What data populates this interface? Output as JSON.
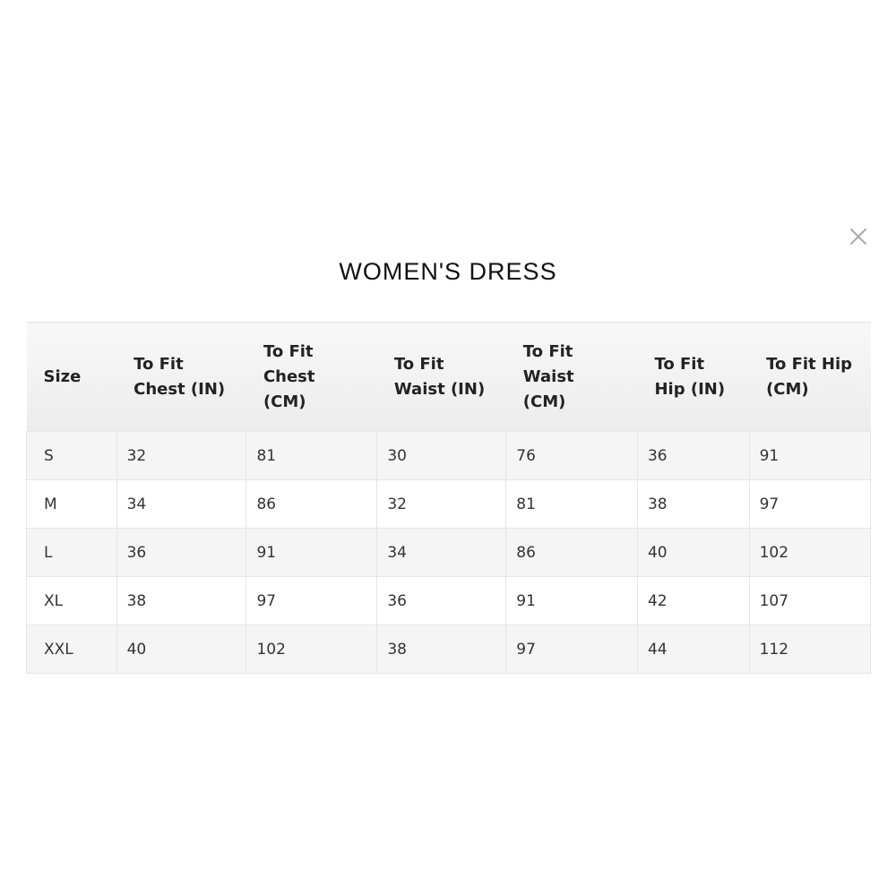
{
  "modal": {
    "title": "WOMEN'S DRESS",
    "close_icon": "close-icon"
  },
  "table": {
    "headers": [
      "Size",
      "To Fit Chest (IN)",
      "To Fit Chest (CM)",
      "To Fit Waist (IN)",
      "To Fit Waist (CM)",
      "To Fit Hip (IN)",
      "To Fit Hip (CM)"
    ],
    "rows": [
      [
        "S",
        "32",
        "81",
        "30",
        "76",
        "36",
        "91"
      ],
      [
        "M",
        "34",
        "86",
        "32",
        "81",
        "38",
        "97"
      ],
      [
        "L",
        "36",
        "91",
        "34",
        "86",
        "40",
        "102"
      ],
      [
        "XL",
        "38",
        "97",
        "36",
        "91",
        "42",
        "107"
      ],
      [
        "XXL",
        "40",
        "102",
        "38",
        "97",
        "44",
        "112"
      ]
    ]
  }
}
